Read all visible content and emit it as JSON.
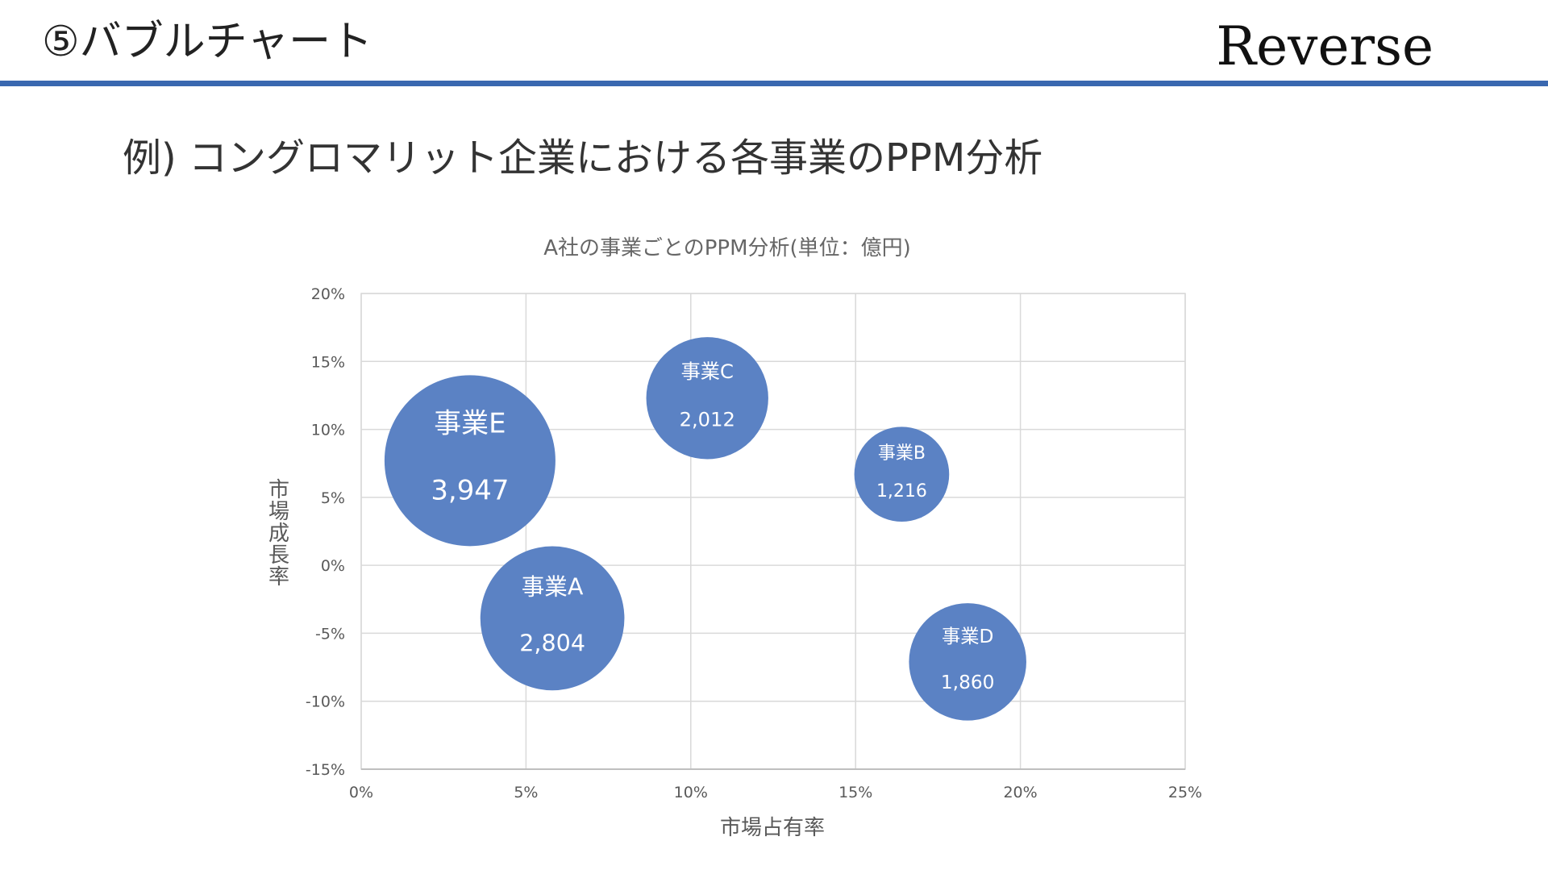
{
  "header": {
    "title": "⑤バブルチャート",
    "logo": "Reverse",
    "rule_color": "#3A68B0"
  },
  "subtitle": "例) コングロマリット企業における各事業のPPM分析",
  "chart_data": {
    "type": "bubble",
    "title": "A社の事業ごとのPPM分析(単位：億円)",
    "xlabel": "市場占有率",
    "ylabel": "市場成長率",
    "xlim": [
      0,
      25
    ],
    "ylim": [
      -15,
      20
    ],
    "xticks": [
      0,
      5,
      10,
      15,
      20,
      25
    ],
    "yticks": [
      -15,
      -10,
      -5,
      0,
      5,
      10,
      15,
      20
    ],
    "xtick_labels": [
      "0%",
      "5%",
      "10%",
      "15%",
      "20%",
      "25%"
    ],
    "ytick_labels": [
      "-15%",
      "-10%",
      "-5%",
      "0%",
      "5%",
      "10%",
      "15%",
      "20%"
    ],
    "grid": true,
    "bubble_color": "#5B82C4",
    "label_color": "#FFFFFF",
    "points": [
      {
        "name": "事業E",
        "x": 3.3,
        "y": 7.7,
        "size": 3947,
        "value_label": "3,947"
      },
      {
        "name": "事業A",
        "x": 5.8,
        "y": -3.9,
        "size": 2804,
        "value_label": "2,804"
      },
      {
        "name": "事業C",
        "x": 10.5,
        "y": 12.3,
        "size": 2012,
        "value_label": "2,012"
      },
      {
        "name": "事業B",
        "x": 16.4,
        "y": 6.7,
        "size": 1216,
        "value_label": "1,216"
      },
      {
        "name": "事業D",
        "x": 18.4,
        "y": -7.1,
        "size": 1860,
        "value_label": "1,860"
      }
    ]
  }
}
